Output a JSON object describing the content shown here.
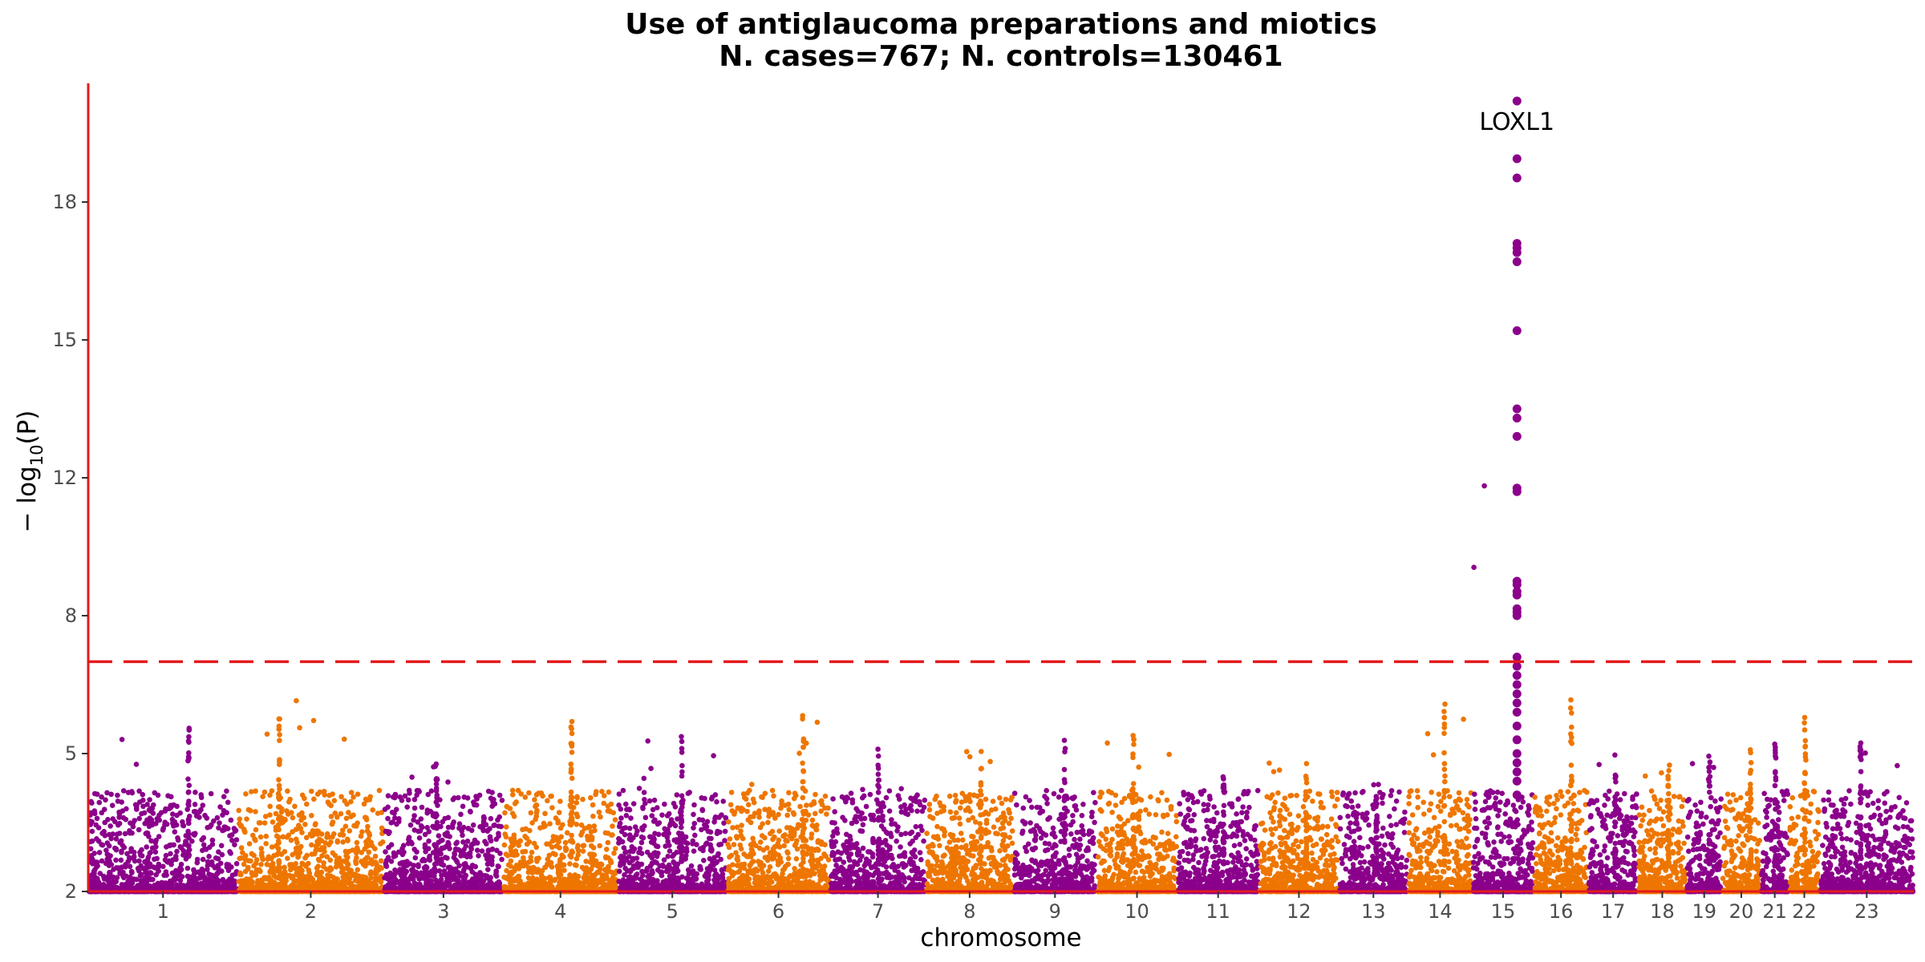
{
  "chart_data": {
    "type": "scatter",
    "title_line1": "Use of antiglaucoma preparations and miotics",
    "title_line2": "N. cases=767; N. controls=130461",
    "xlabel": "chromosome",
    "ylabel": "−log10(P)",
    "ylabel_main": "− log",
    "ylabel_sub": "10",
    "ylabel_tail": "(P)",
    "ylim": [
      2,
      20.3
    ],
    "yticks": [
      2,
      5,
      8,
      12,
      15,
      18
    ],
    "y_scale": "-log10 transformed (compressed above 7)",
    "significance_threshold": 7,
    "colors": {
      "odd": "#8b008b",
      "even": "#ee7600",
      "axis": "#e41a1c",
      "threshold": "#e41a1c"
    },
    "chromosomes": [
      {
        "label": "1",
        "start": 0,
        "end": 248,
        "peak": 5.6
      },
      {
        "label": "2",
        "start": 248,
        "end": 490,
        "peak": 6.2
      },
      {
        "label": "3",
        "start": 490,
        "end": 688,
        "peak": 4.9
      },
      {
        "label": "4",
        "start": 688,
        "end": 878,
        "peak": 5.9
      },
      {
        "label": "5",
        "start": 878,
        "end": 1059,
        "peak": 5.4
      },
      {
        "label": "6",
        "start": 1059,
        "end": 1230,
        "peak": 6.1
      },
      {
        "label": "7",
        "start": 1230,
        "end": 1389,
        "peak": 5.1
      },
      {
        "label": "8",
        "start": 1389,
        "end": 1534,
        "peak": 5.5
      },
      {
        "label": "9",
        "start": 1534,
        "end": 1672,
        "peak": 5.3
      },
      {
        "label": "10",
        "start": 1672,
        "end": 1806,
        "peak": 5.5
      },
      {
        "label": "11",
        "start": 1806,
        "end": 1941,
        "peak": 4.6
      },
      {
        "label": "12",
        "start": 1941,
        "end": 2074,
        "peak": 4.9
      },
      {
        "label": "13",
        "start": 2074,
        "end": 2188,
        "peak": 4.5
      },
      {
        "label": "14",
        "start": 2188,
        "end": 2295,
        "peak": 6.3
      },
      {
        "label": "15",
        "start": 2295,
        "end": 2397,
        "peak": 20.1
      },
      {
        "label": "16",
        "start": 2397,
        "end": 2487,
        "peak": 6.4
      },
      {
        "label": "17",
        "start": 2487,
        "end": 2570,
        "peak": 5.0
      },
      {
        "label": "18",
        "start": 2570,
        "end": 2650,
        "peak": 4.8
      },
      {
        "label": "19",
        "start": 2650,
        "end": 2709,
        "peak": 5.4
      },
      {
        "label": "20",
        "start": 2709,
        "end": 2773,
        "peak": 5.3
      },
      {
        "label": "21",
        "start": 2773,
        "end": 2820,
        "peak": 5.3
      },
      {
        "label": "22",
        "start": 2820,
        "end": 2871,
        "peak": 5.8
      },
      {
        "label": "23",
        "start": 2871,
        "end": 3027,
        "peak": 5.3
      }
    ],
    "lead_locus": {
      "chromosome": "15",
      "label": "LOXL1",
      "position": 2369,
      "y_values": [
        20.1,
        18.9,
        18.5,
        17.1,
        17.0,
        16.9,
        16.7,
        15.2,
        13.5,
        13.3,
        12.9,
        11.7,
        11.6,
        9.0,
        8.9,
        8.7,
        8.6,
        8.2,
        8.1,
        8.0,
        7.1,
        6.9,
        6.7,
        6.5,
        6.3,
        6.1,
        5.9,
        5.6,
        5.3,
        5.0,
        4.8,
        4.6,
        4.4,
        4.1
      ]
    }
  }
}
